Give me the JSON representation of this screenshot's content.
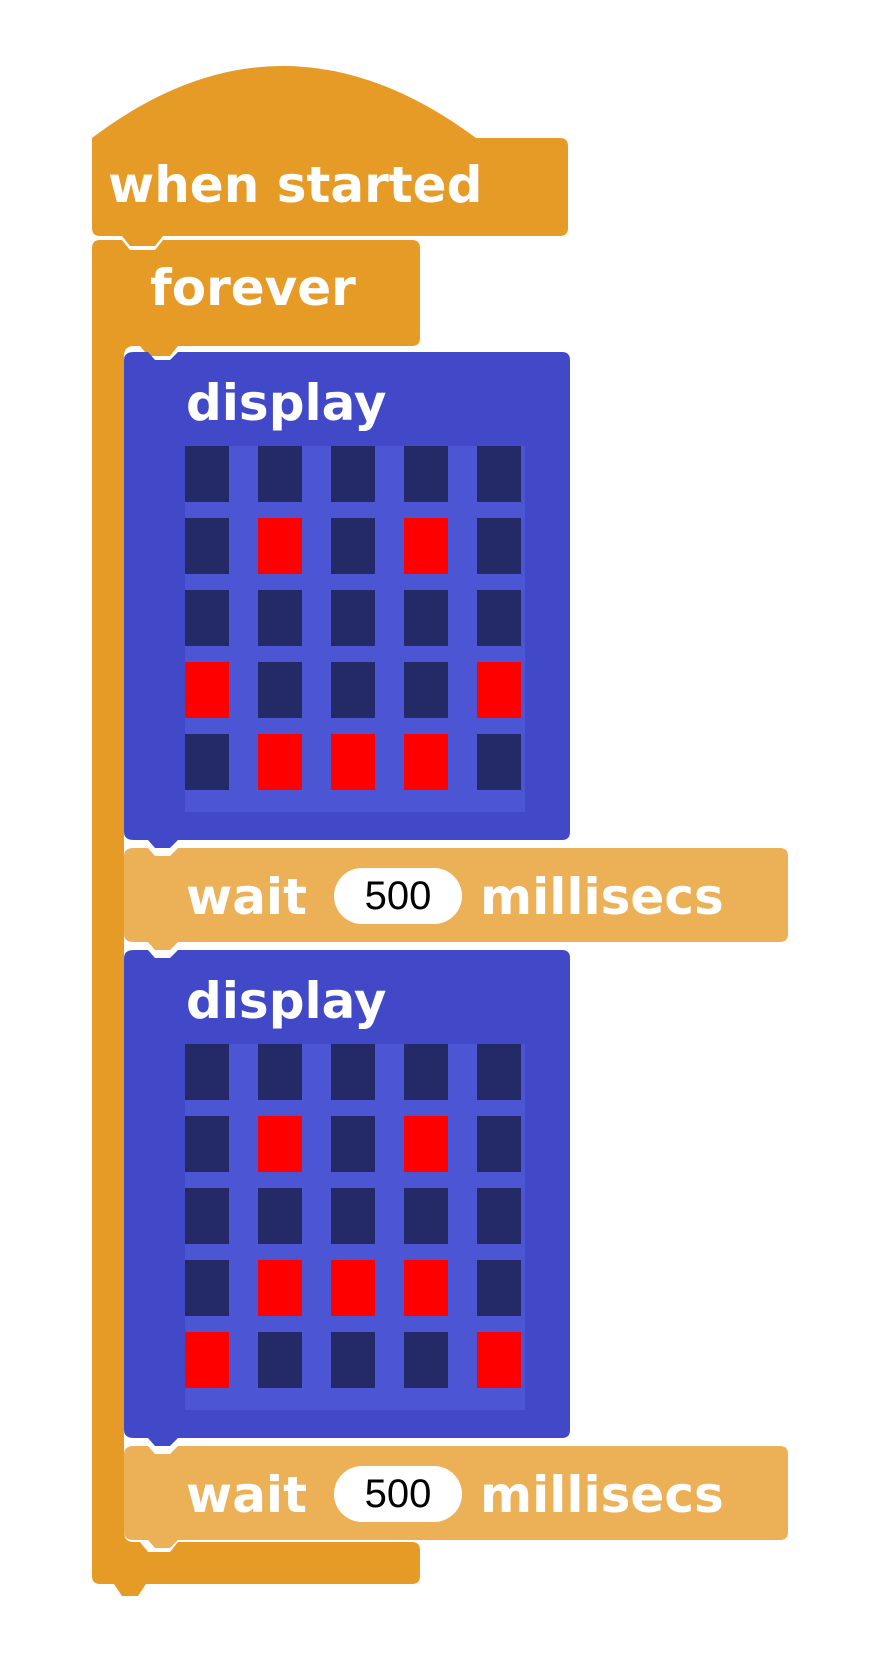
{
  "script": {
    "hat": {
      "label": "when started"
    },
    "loop": {
      "label": "forever"
    },
    "steps": [
      {
        "label": "display",
        "leds": [
          [
            0,
            0,
            0,
            0,
            0
          ],
          [
            0,
            1,
            0,
            1,
            0
          ],
          [
            0,
            0,
            0,
            0,
            0
          ],
          [
            1,
            0,
            0,
            0,
            1
          ],
          [
            0,
            1,
            1,
            1,
            0
          ]
        ]
      },
      {
        "label": "wait",
        "value": "500",
        "unit": "millisecs"
      },
      {
        "label": "display",
        "leds": [
          [
            0,
            0,
            0,
            0,
            0
          ],
          [
            0,
            1,
            0,
            1,
            0
          ],
          [
            0,
            0,
            0,
            0,
            0
          ],
          [
            0,
            1,
            1,
            1,
            0
          ],
          [
            1,
            0,
            0,
            0,
            1
          ]
        ]
      },
      {
        "label": "wait",
        "value": "500",
        "unit": "millisecs"
      }
    ]
  },
  "colors": {
    "control": "#e79b27",
    "control_light": "#ecb057",
    "display_block": "#4149c9",
    "grid_background": "#4c55d3",
    "led_on": "#ff0000",
    "led_off": "#232a66"
  }
}
